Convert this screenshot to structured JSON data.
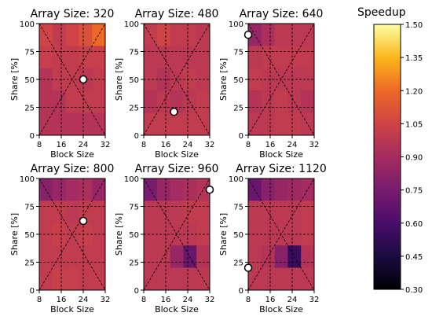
{
  "chart_data": {
    "type": "heatmap",
    "subtype": "filled-contour small multiples",
    "xlabel": "Block Size",
    "ylabel": "Share [%]",
    "xticks": [
      8,
      16,
      24,
      32
    ],
    "yticks": [
      0,
      25,
      50,
      75,
      100
    ],
    "xlim": [
      8,
      32
    ],
    "ylim": [
      0,
      100
    ],
    "grid": true,
    "panels": [
      {
        "title": "Array Size: 320",
        "levels": [
          [
            1.05,
            1.0,
            1.05,
            1.1,
            1.2
          ],
          [
            1.02,
            1.0,
            1.0,
            1.02,
            1.02
          ],
          [
            0.95,
            1.0,
            1.0,
            0.98,
            1.0
          ],
          [
            0.95,
            0.95,
            1.0,
            1.0,
            1.0
          ],
          [
            0.95,
            0.95,
            0.95,
            0.95,
            0.95
          ]
        ],
        "marker": [
          24,
          50
        ]
      },
      {
        "title": "Array Size: 480",
        "levels": [
          [
            1.0,
            1.05,
            1.0,
            1.0,
            0.98
          ],
          [
            0.98,
            0.98,
            0.98,
            0.98,
            0.98
          ],
          [
            0.98,
            0.95,
            0.98,
            1.0,
            0.98
          ],
          [
            0.95,
            0.98,
            0.95,
            0.98,
            1.0
          ],
          [
            1.0,
            1.0,
            1.0,
            1.0,
            1.0
          ]
        ],
        "marker": [
          19,
          21
        ]
      },
      {
        "title": "Array Size: 640",
        "levels": [
          [
            0.85,
            0.92,
            0.98,
            0.98,
            0.98
          ],
          [
            0.98,
            1.0,
            1.0,
            1.0,
            1.0
          ],
          [
            1.0,
            0.98,
            0.98,
            0.98,
            0.98
          ],
          [
            0.95,
            0.98,
            1.0,
            0.98,
            0.95
          ],
          [
            0.98,
            0.98,
            1.0,
            1.0,
            0.98
          ]
        ],
        "marker": [
          8,
          90
        ]
      },
      {
        "title": "Array Size: 800",
        "levels": [
          [
            0.8,
            0.85,
            0.9,
            0.92,
            0.85
          ],
          [
            1.0,
            1.0,
            0.98,
            1.0,
            1.0
          ],
          [
            1.0,
            1.02,
            1.0,
            1.02,
            1.0
          ],
          [
            1.0,
            1.0,
            1.0,
            1.0,
            1.0
          ],
          [
            1.0,
            1.02,
            1.02,
            1.0,
            1.0
          ]
        ],
        "marker": [
          24,
          62
        ]
      },
      {
        "title": "Array Size: 960",
        "levels": [
          [
            0.75,
            0.85,
            0.9,
            0.92,
            0.95
          ],
          [
            0.98,
            0.98,
            0.98,
            1.0,
            1.0
          ],
          [
            0.98,
            0.98,
            0.98,
            0.98,
            1.0
          ],
          [
            0.98,
            0.98,
            0.85,
            0.7,
            0.95
          ],
          [
            0.98,
            0.98,
            0.98,
            0.98,
            0.98
          ]
        ],
        "marker": [
          32,
          90
        ]
      },
      {
        "title": "Array Size: 1120",
        "levels": [
          [
            0.7,
            0.8,
            0.85,
            0.88,
            0.9
          ],
          [
            0.98,
            0.98,
            0.98,
            0.98,
            1.0
          ],
          [
            0.98,
            0.98,
            0.98,
            0.98,
            1.0
          ],
          [
            0.98,
            0.95,
            0.8,
            0.55,
            0.95
          ],
          [
            0.98,
            0.98,
            0.98,
            0.98,
            0.98
          ]
        ],
        "marker": [
          8,
          20
        ]
      }
    ],
    "colorbar": {
      "label": "Speedup",
      "ticks": [
        "1.50",
        "1.35",
        "1.20",
        "1.05",
        "0.90",
        "0.75",
        "0.60",
        "0.45",
        "0.30"
      ],
      "range": [
        0.3,
        1.5
      ],
      "colormap": "inferno"
    }
  }
}
